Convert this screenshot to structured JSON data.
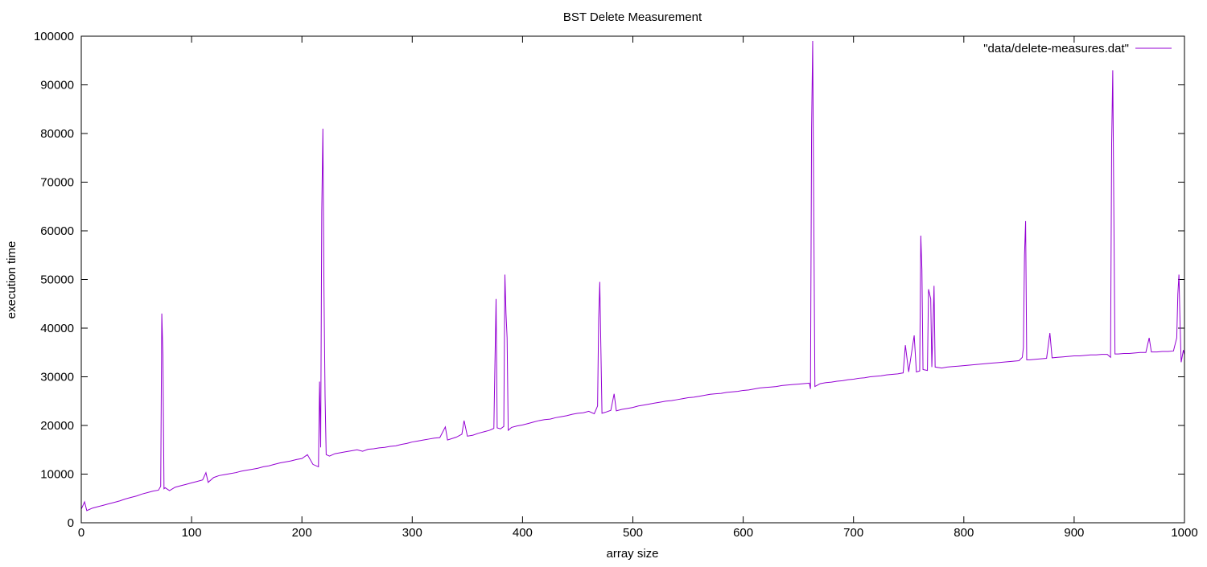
{
  "chart_data": {
    "type": "line",
    "title": "BST Delete Measurement",
    "xlabel": "array size",
    "ylabel": "execution time",
    "xlim": [
      0,
      1000
    ],
    "ylim": [
      0,
      100000
    ],
    "xticks": [
      0,
      100,
      200,
      300,
      400,
      500,
      600,
      700,
      800,
      900,
      1000
    ],
    "yticks": [
      0,
      10000,
      20000,
      30000,
      40000,
      50000,
      60000,
      70000,
      80000,
      90000,
      100000
    ],
    "grid": false,
    "legend_position": "top-right",
    "series": [
      {
        "name": "\"data/delete-measures.dat\"",
        "color": "#9400d3",
        "points": [
          [
            0,
            2800
          ],
          [
            3,
            4300
          ],
          [
            5,
            2500
          ],
          [
            10,
            3000
          ],
          [
            15,
            3300
          ],
          [
            20,
            3600
          ],
          [
            25,
            3900
          ],
          [
            30,
            4200
          ],
          [
            35,
            4500
          ],
          [
            40,
            4900
          ],
          [
            45,
            5200
          ],
          [
            50,
            5500
          ],
          [
            55,
            5900
          ],
          [
            60,
            6200
          ],
          [
            65,
            6500
          ],
          [
            70,
            6700
          ],
          [
            72,
            7500
          ],
          [
            73,
            43000
          ],
          [
            74,
            34500
          ],
          [
            75,
            7000
          ],
          [
            76,
            7200
          ],
          [
            80,
            6600
          ],
          [
            85,
            7300
          ],
          [
            90,
            7600
          ],
          [
            95,
            7900
          ],
          [
            100,
            8200
          ],
          [
            105,
            8500
          ],
          [
            110,
            8800
          ],
          [
            113,
            10300
          ],
          [
            115,
            8300
          ],
          [
            120,
            9300
          ],
          [
            125,
            9700
          ],
          [
            130,
            9900
          ],
          [
            135,
            10100
          ],
          [
            140,
            10300
          ],
          [
            145,
            10600
          ],
          [
            150,
            10800
          ],
          [
            155,
            11000
          ],
          [
            160,
            11200
          ],
          [
            165,
            11500
          ],
          [
            170,
            11700
          ],
          [
            175,
            12000
          ],
          [
            180,
            12300
          ],
          [
            185,
            12500
          ],
          [
            190,
            12700
          ],
          [
            195,
            13000
          ],
          [
            200,
            13200
          ],
          [
            205,
            14000
          ],
          [
            210,
            12000
          ],
          [
            215,
            11500
          ],
          [
            216,
            29000
          ],
          [
            217,
            15500
          ],
          [
            218,
            64000
          ],
          [
            219,
            81000
          ],
          [
            220,
            48000
          ],
          [
            221,
            26000
          ],
          [
            222,
            14000
          ],
          [
            225,
            13700
          ],
          [
            230,
            14200
          ],
          [
            235,
            14400
          ],
          [
            240,
            14600
          ],
          [
            245,
            14800
          ],
          [
            250,
            15000
          ],
          [
            255,
            14700
          ],
          [
            260,
            15100
          ],
          [
            265,
            15200
          ],
          [
            270,
            15400
          ],
          [
            275,
            15500
          ],
          [
            280,
            15700
          ],
          [
            285,
            15800
          ],
          [
            290,
            16100
          ],
          [
            295,
            16300
          ],
          [
            300,
            16600
          ],
          [
            305,
            16800
          ],
          [
            310,
            17000
          ],
          [
            315,
            17200
          ],
          [
            320,
            17400
          ],
          [
            325,
            17500
          ],
          [
            330,
            19700
          ],
          [
            332,
            17000
          ],
          [
            340,
            17600
          ],
          [
            345,
            18200
          ],
          [
            347,
            21000
          ],
          [
            350,
            17800
          ],
          [
            355,
            18000
          ],
          [
            360,
            18400
          ],
          [
            365,
            18700
          ],
          [
            370,
            19000
          ],
          [
            374,
            19400
          ],
          [
            375,
            33000
          ],
          [
            376,
            46000
          ],
          [
            377,
            19500
          ],
          [
            380,
            19300
          ],
          [
            383,
            19800
          ],
          [
            384,
            51000
          ],
          [
            385,
            43000
          ],
          [
            386,
            38000
          ],
          [
            387,
            19000
          ],
          [
            390,
            19600
          ],
          [
            395,
            19900
          ],
          [
            400,
            20100
          ],
          [
            405,
            20400
          ],
          [
            410,
            20700
          ],
          [
            415,
            21000
          ],
          [
            420,
            21200
          ],
          [
            425,
            21300
          ],
          [
            430,
            21600
          ],
          [
            435,
            21800
          ],
          [
            440,
            22000
          ],
          [
            445,
            22300
          ],
          [
            450,
            22500
          ],
          [
            455,
            22600
          ],
          [
            460,
            22900
          ],
          [
            465,
            22400
          ],
          [
            468,
            24000
          ],
          [
            469,
            42000
          ],
          [
            470,
            49500
          ],
          [
            471,
            36000
          ],
          [
            472,
            22500
          ],
          [
            475,
            22700
          ],
          [
            480,
            23100
          ],
          [
            483,
            26500
          ],
          [
            485,
            23000
          ],
          [
            490,
            23300
          ],
          [
            495,
            23500
          ],
          [
            500,
            23700
          ],
          [
            505,
            24000
          ],
          [
            510,
            24200
          ],
          [
            515,
            24400
          ],
          [
            520,
            24600
          ],
          [
            525,
            24800
          ],
          [
            530,
            25000
          ],
          [
            535,
            25100
          ],
          [
            540,
            25300
          ],
          [
            545,
            25500
          ],
          [
            550,
            25700
          ],
          [
            555,
            25800
          ],
          [
            560,
            26000
          ],
          [
            565,
            26200
          ],
          [
            570,
            26400
          ],
          [
            575,
            26500
          ],
          [
            580,
            26600
          ],
          [
            585,
            26800
          ],
          [
            590,
            26900
          ],
          [
            595,
            27000
          ],
          [
            600,
            27200
          ],
          [
            605,
            27300
          ],
          [
            610,
            27500
          ],
          [
            615,
            27700
          ],
          [
            620,
            27800
          ],
          [
            625,
            27900
          ],
          [
            630,
            28000
          ],
          [
            635,
            28200
          ],
          [
            640,
            28300
          ],
          [
            645,
            28400
          ],
          [
            650,
            28500
          ],
          [
            655,
            28600
          ],
          [
            660,
            28700
          ],
          [
            661,
            27500
          ],
          [
            662,
            81000
          ],
          [
            663,
            99000
          ],
          [
            664,
            63000
          ],
          [
            665,
            28000
          ],
          [
            670,
            28600
          ],
          [
            675,
            28800
          ],
          [
            680,
            28900
          ],
          [
            685,
            29100
          ],
          [
            690,
            29200
          ],
          [
            695,
            29400
          ],
          [
            700,
            29500
          ],
          [
            705,
            29700
          ],
          [
            710,
            29800
          ],
          [
            715,
            30000
          ],
          [
            720,
            30100
          ],
          [
            725,
            30200
          ],
          [
            730,
            30400
          ],
          [
            735,
            30500
          ],
          [
            740,
            30600
          ],
          [
            745,
            30800
          ],
          [
            747,
            36500
          ],
          [
            750,
            31000
          ],
          [
            755,
            38500
          ],
          [
            757,
            31000
          ],
          [
            760,
            31200
          ],
          [
            761,
            59000
          ],
          [
            762,
            52000
          ],
          [
            763,
            31500
          ],
          [
            767,
            31300
          ],
          [
            768,
            48000
          ],
          [
            770,
            46000
          ],
          [
            771,
            32000
          ],
          [
            773,
            48700
          ],
          [
            774,
            32000
          ],
          [
            780,
            31800
          ],
          [
            785,
            32000
          ],
          [
            790,
            32100
          ],
          [
            795,
            32200
          ],
          [
            800,
            32300
          ],
          [
            805,
            32400
          ],
          [
            810,
            32500
          ],
          [
            815,
            32600
          ],
          [
            820,
            32700
          ],
          [
            825,
            32800
          ],
          [
            830,
            32900
          ],
          [
            835,
            33000
          ],
          [
            840,
            33100
          ],
          [
            845,
            33200
          ],
          [
            850,
            33300
          ],
          [
            853,
            34000
          ],
          [
            854,
            36000
          ],
          [
            855,
            55000
          ],
          [
            856,
            62000
          ],
          [
            857,
            33500
          ],
          [
            860,
            33500
          ],
          [
            865,
            33600
          ],
          [
            870,
            33700
          ],
          [
            875,
            33800
          ],
          [
            878,
            39000
          ],
          [
            880,
            33900
          ],
          [
            885,
            34000
          ],
          [
            890,
            34100
          ],
          [
            895,
            34200
          ],
          [
            900,
            34300
          ],
          [
            905,
            34300
          ],
          [
            910,
            34400
          ],
          [
            915,
            34500
          ],
          [
            920,
            34500
          ],
          [
            925,
            34600
          ],
          [
            930,
            34600
          ],
          [
            933,
            34000
          ],
          [
            934,
            78000
          ],
          [
            935,
            93000
          ],
          [
            936,
            63500
          ],
          [
            937,
            34700
          ],
          [
            940,
            34700
          ],
          [
            945,
            34800
          ],
          [
            950,
            34800
          ],
          [
            955,
            34900
          ],
          [
            960,
            35000
          ],
          [
            965,
            35000
          ],
          [
            968,
            38000
          ],
          [
            970,
            35100
          ],
          [
            975,
            35100
          ],
          [
            980,
            35200
          ],
          [
            985,
            35200
          ],
          [
            990,
            35300
          ],
          [
            993,
            38000
          ],
          [
            994,
            47000
          ],
          [
            995,
            51000
          ],
          [
            996,
            41000
          ],
          [
            997,
            33000
          ],
          [
            999,
            35500
          ],
          [
            1000,
            34500
          ]
        ]
      }
    ]
  }
}
